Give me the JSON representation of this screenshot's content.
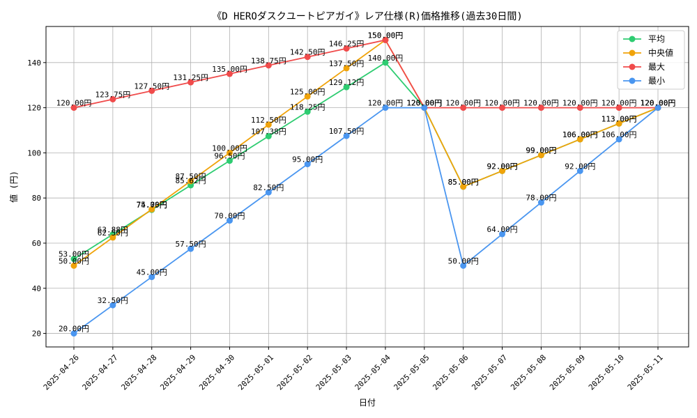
{
  "chart_data": {
    "type": "line",
    "title": "《D HEROダスクユートピアガイ》レア仕様(R)価格推移(過去30日間)",
    "xlabel": "日付",
    "ylabel": "値 (円)",
    "ylim": [
      14,
      156
    ],
    "yticks": [
      20,
      40,
      60,
      80,
      100,
      120,
      140
    ],
    "grid": true,
    "legend_position": "top-right",
    "value_suffix": "円",
    "categories": [
      "2025-04-26",
      "2025-04-27",
      "2025-04-28",
      "2025-04-29",
      "2025-04-30",
      "2025-05-01",
      "2025-05-02",
      "2025-05-03",
      "2025-05-04",
      "2025-05-05",
      "2025-05-06",
      "2025-05-07",
      "2025-05-08",
      "2025-05-09",
      "2025-05-10",
      "2025-05-11"
    ],
    "series": [
      {
        "name": "平均",
        "color": "#2ecc71",
        "values": [
          53.0,
          63.88,
          74.75,
          85.62,
          96.5,
          107.38,
          118.25,
          129.12,
          140.0,
          120.0,
          85.0,
          92.0,
          99.0,
          106.0,
          113.0,
          120.0
        ]
      },
      {
        "name": "中央値",
        "color": "#f0a30a",
        "values": [
          50.0,
          62.5,
          75.0,
          87.5,
          100.0,
          112.5,
          125.0,
          137.5,
          150.0,
          120.0,
          85.0,
          92.0,
          99.0,
          106.0,
          113.0,
          120.0
        ]
      },
      {
        "name": "最大",
        "color": "#f04b4b",
        "values": [
          120.0,
          123.75,
          127.5,
          131.25,
          135.0,
          138.75,
          142.5,
          146.25,
          150.0,
          120.0,
          120.0,
          120.0,
          120.0,
          120.0,
          120.0,
          120.0
        ]
      },
      {
        "name": "最小",
        "color": "#4a96f0",
        "values": [
          20.0,
          32.5,
          45.0,
          57.5,
          70.0,
          82.5,
          95.0,
          107.5,
          120.0,
          120.0,
          50.0,
          64.0,
          78.0,
          92.0,
          106.0,
          120.0
        ]
      }
    ]
  }
}
